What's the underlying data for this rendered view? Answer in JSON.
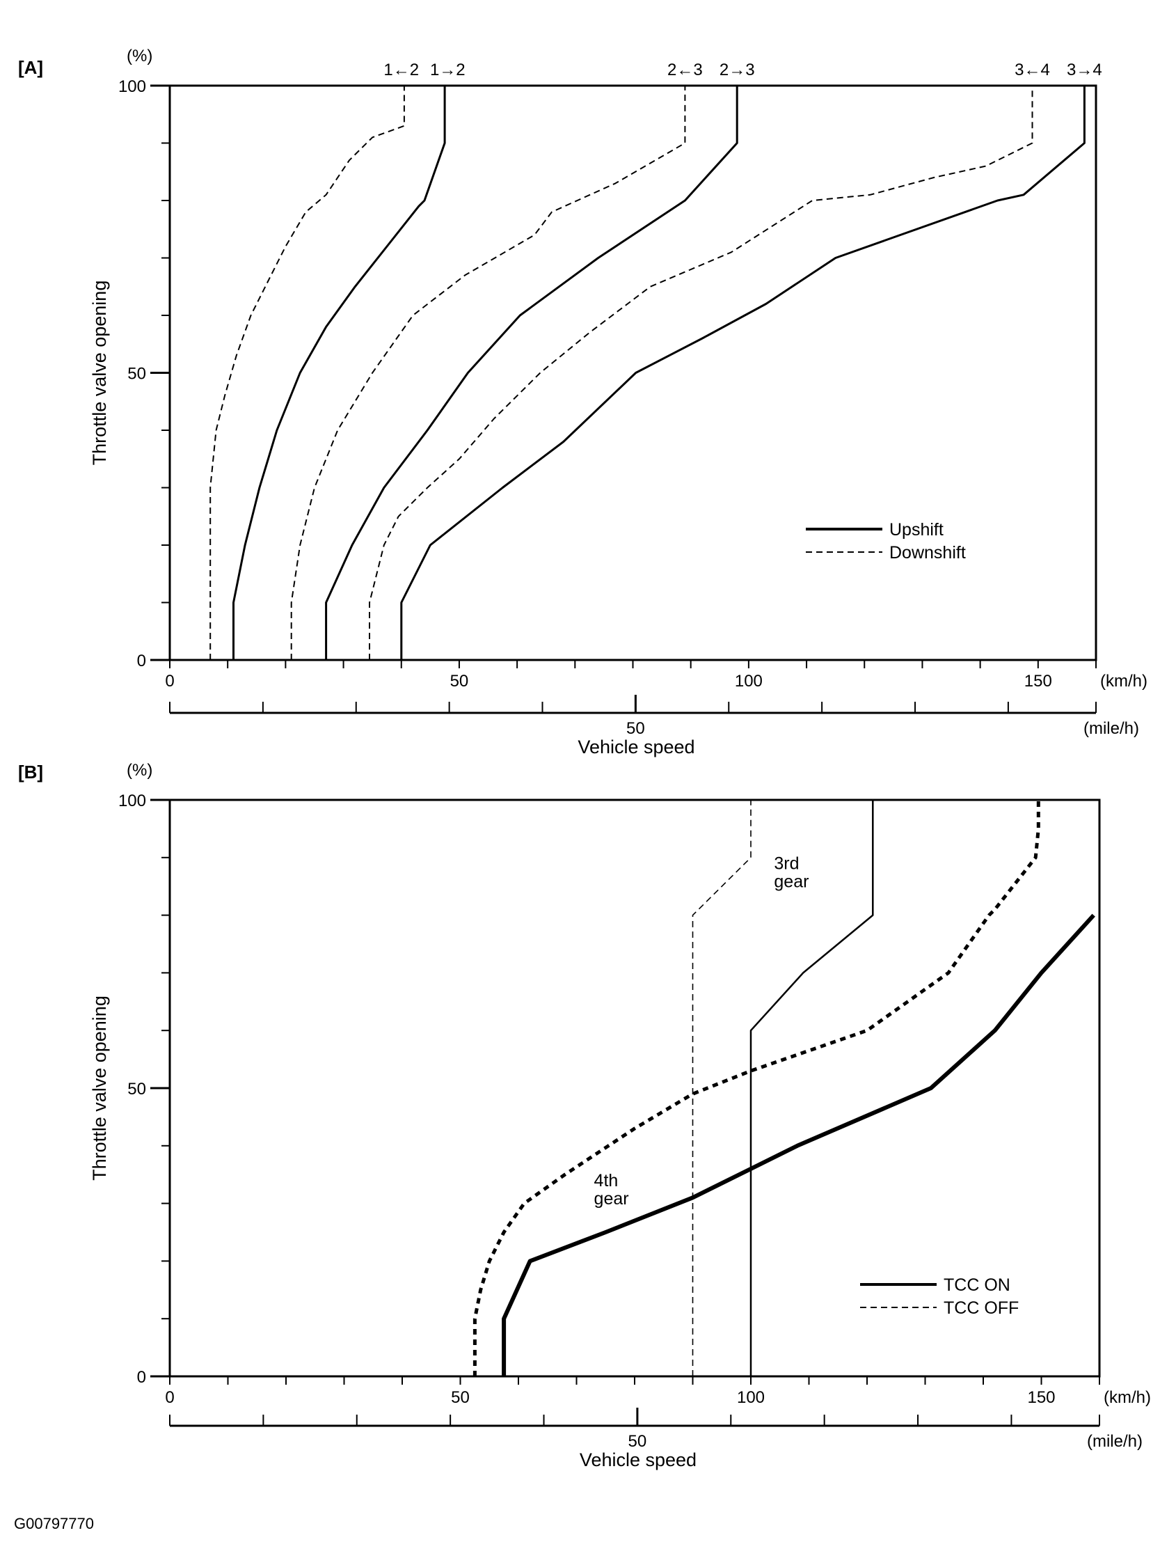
{
  "footer_code": "G00797770",
  "chart_data": [
    {
      "panel": "[A]",
      "type": "line",
      "title": "",
      "xlabel": "Vehicle speed",
      "ylabel": "Throttle valve opening",
      "y_unit": "(%)",
      "x_unit": "(km/h)",
      "x2_unit": "(mile/h)",
      "xlim": [
        0,
        160
      ],
      "ylim": [
        0,
        100
      ],
      "x_ticks": [
        0,
        50,
        100,
        150
      ],
      "y_ticks": [
        0,
        50,
        100
      ],
      "x2_ticks": [
        50
      ],
      "grid": false,
      "legend_position": "lower-right",
      "legend": [
        {
          "label": "Upshift",
          "style": "solid"
        },
        {
          "label": "Downshift",
          "style": "dashed"
        }
      ],
      "top_labels": [
        {
          "text": "1←2",
          "x": 40
        },
        {
          "text": "1→2",
          "x": 48
        },
        {
          "text": "2←3",
          "x": 89
        },
        {
          "text": "2→3",
          "x": 98
        },
        {
          "text": "3←4",
          "x": 149
        },
        {
          "text": "3→4",
          "x": 158
        }
      ],
      "series": [
        {
          "kind": "Downshift",
          "style": "dashed",
          "shift": "1←2",
          "x": [
            7,
            7,
            8,
            9.5,
            11.5,
            14,
            17,
            20,
            23.5,
            27,
            31,
            35,
            40.5,
            40.5
          ],
          "y": [
            0,
            30,
            40,
            46,
            53,
            60,
            66,
            72,
            78,
            81,
            87,
            91,
            93,
            100
          ]
        },
        {
          "kind": "Upshift",
          "style": "solid",
          "shift": "1→2",
          "x": [
            11,
            11,
            13,
            15.5,
            18.5,
            22.5,
            27,
            32,
            37.5,
            43,
            44,
            47.5,
            47.5
          ],
          "y": [
            0,
            10,
            20,
            30,
            40,
            50,
            58,
            65,
            72,
            79,
            80,
            90,
            100
          ]
        },
        {
          "kind": "Downshift",
          "style": "dashed",
          "shift": "2←3",
          "x": [
            21,
            21,
            22.5,
            25,
            29,
            35,
            42,
            51,
            63,
            66,
            77,
            89,
            89
          ],
          "y": [
            0,
            10,
            20,
            30,
            40,
            50,
            60,
            67,
            74,
            78,
            83,
            90,
            100
          ]
        },
        {
          "kind": "Upshift",
          "style": "solid",
          "shift": "2→3",
          "x": [
            27,
            27,
            31.5,
            37,
            44.5,
            51.5,
            60.5,
            74,
            89,
            98,
            98
          ],
          "y": [
            0,
            10,
            20,
            30,
            40,
            50,
            60,
            70,
            80,
            90,
            100
          ]
        },
        {
          "kind": "Downshift",
          "style": "dashed",
          "shift": "3←4",
          "x": [
            34.5,
            34.5,
            37,
            39.5,
            44.5,
            50,
            56,
            64,
            72.5,
            83,
            97,
            111,
            121,
            132,
            141,
            149,
            149
          ],
          "y": [
            0,
            10,
            20,
            25,
            30,
            35,
            42,
            50,
            57,
            65,
            71,
            80,
            81,
            84,
            86,
            90,
            100
          ]
        },
        {
          "kind": "Upshift",
          "style": "solid",
          "shift": "3→4",
          "x": [
            40,
            40,
            45,
            57.5,
            68,
            80.5,
            92,
            103,
            115,
            143,
            147.5,
            158,
            158
          ],
          "y": [
            0,
            10,
            20,
            30,
            38,
            50,
            56,
            62,
            70,
            80,
            81,
            90,
            100
          ]
        }
      ]
    },
    {
      "panel": "[B]",
      "type": "line",
      "title": "",
      "xlabel": "Vehicle speed",
      "ylabel": "Throttle valve opening",
      "y_unit": "(%)",
      "x_unit": "(km/h)",
      "x2_unit": "(mile/h)",
      "xlim": [
        0,
        160
      ],
      "ylim": [
        0,
        100
      ],
      "x_ticks": [
        0,
        50,
        100,
        150
      ],
      "y_ticks": [
        0,
        50,
        100
      ],
      "x2_ticks": [
        50
      ],
      "grid": false,
      "legend_position": "lower-right",
      "legend": [
        {
          "label": "TCC ON",
          "style": "solid"
        },
        {
          "label": "TCC OFF",
          "style": "dashed"
        }
      ],
      "annotations": [
        {
          "text": "3rd\ngear",
          "x": 104,
          "y": 88
        },
        {
          "text": "4th\ngear",
          "x": 73,
          "y": 33
        }
      ],
      "series": [
        {
          "gear": "3rd gear",
          "kind": "TCC OFF",
          "style": "dashed",
          "weight": "thin",
          "x": [
            90,
            90,
            91,
            100,
            100
          ],
          "y": [
            0,
            80,
            81,
            90,
            100
          ]
        },
        {
          "gear": "3rd gear",
          "kind": "TCC ON",
          "style": "solid",
          "weight": "thin",
          "x": [
            100,
            100,
            109,
            121,
            121
          ],
          "y": [
            0,
            60,
            70,
            80,
            100
          ]
        },
        {
          "gear": "4th gear",
          "kind": "TCC OFF",
          "style": "dashed",
          "weight": "bold",
          "x": [
            52.5,
            52.5,
            53.5,
            55,
            57.5,
            61,
            68,
            75.5,
            80,
            90,
            100,
            120,
            134,
            141,
            142,
            149,
            149.5,
            149.5
          ],
          "y": [
            0,
            10,
            15,
            20,
            25,
            30,
            35,
            40,
            43,
            49,
            53,
            60,
            70,
            80,
            81,
            90,
            95,
            100
          ]
        },
        {
          "gear": "4th gear",
          "kind": "TCC ON",
          "style": "solid",
          "weight": "bold",
          "x": [
            57.5,
            57.5,
            62,
            75,
            90,
            100,
            108,
            131,
            142,
            150,
            159
          ],
          "y": [
            0,
            10,
            20,
            25,
            31,
            36,
            40,
            50,
            60,
            70,
            80
          ]
        }
      ]
    }
  ]
}
